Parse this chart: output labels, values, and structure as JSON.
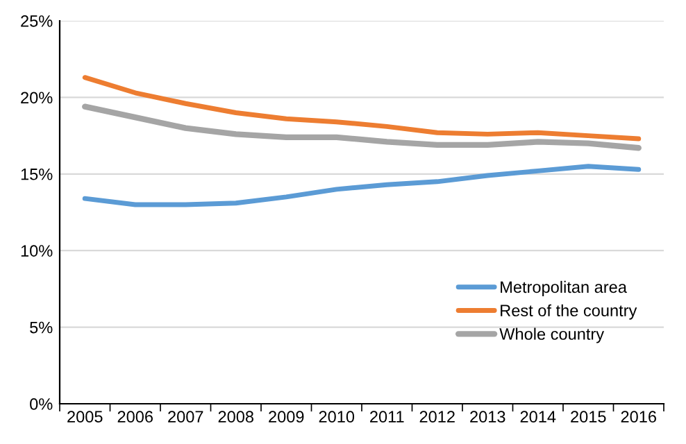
{
  "chart_data": {
    "type": "line",
    "categories": [
      "2005",
      "2006",
      "2007",
      "2008",
      "2009",
      "2010",
      "2011",
      "2012",
      "2013",
      "2014",
      "2015",
      "2016"
    ],
    "series": [
      {
        "name": "Metropolitan area",
        "color": "#5b9bd5",
        "values": [
          13.4,
          13.0,
          13.0,
          13.1,
          13.5,
          14.0,
          14.3,
          14.5,
          14.9,
          15.2,
          15.5,
          15.3
        ]
      },
      {
        "name": "Rest of the country",
        "color": "#ed7d31",
        "values": [
          21.3,
          20.3,
          19.6,
          19.0,
          18.6,
          18.4,
          18.1,
          17.7,
          17.6,
          17.7,
          17.5,
          17.3
        ]
      },
      {
        "name": "Whole country",
        "color": "#a5a5a5",
        "values": [
          19.4,
          18.7,
          18.0,
          17.6,
          17.4,
          17.4,
          17.1,
          16.9,
          16.9,
          17.1,
          17.0,
          16.7
        ]
      }
    ],
    "ylim": [
      0,
      25
    ],
    "yticks": [
      {
        "value": 0,
        "label": "0%"
      },
      {
        "value": 5,
        "label": "5%"
      },
      {
        "value": 10,
        "label": "10%"
      },
      {
        "value": 15,
        "label": "15%"
      },
      {
        "value": 20,
        "label": "20%"
      },
      {
        "value": 25,
        "label": "25%"
      }
    ],
    "grid": "y",
    "legend": "bottom right",
    "marker": "none",
    "line_style": "solid"
  }
}
